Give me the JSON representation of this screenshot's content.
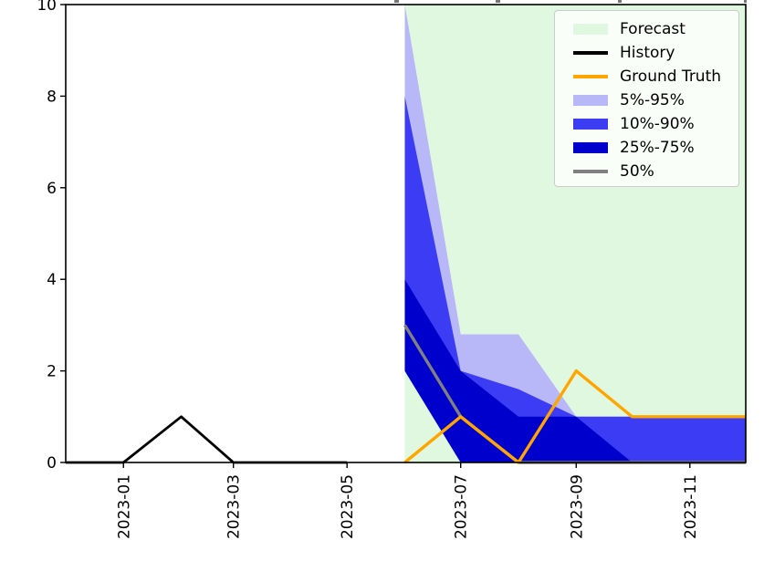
{
  "chart_data": {
    "type": "area",
    "title": "",
    "grid": false,
    "legend_position": "upper right",
    "xlim": [
      "2022-12-01",
      "2023-12-01"
    ],
    "ylim": [
      0,
      10
    ],
    "y_ticks": [
      0,
      2,
      4,
      6,
      8,
      10
    ],
    "x_tick_labels": [
      "2023-01",
      "2023-03",
      "2023-05",
      "2023-07",
      "2023-09",
      "2023-11"
    ],
    "history": {
      "x": [
        "2022-12",
        "2023-01",
        "2023-02",
        "2023-03",
        "2023-04",
        "2023-05"
      ],
      "y": [
        0,
        0,
        1,
        0,
        0,
        0
      ]
    },
    "ground_truth": {
      "x": [
        "2023-06",
        "2023-07",
        "2023-08",
        "2023-09",
        "2023-10",
        "2023-11",
        "2023-12"
      ],
      "y": [
        0,
        1,
        0,
        2,
        1,
        1,
        1
      ]
    },
    "forecast": {
      "region_start": "2023-06",
      "region_end": "2023-12",
      "x": [
        "2023-06",
        "2023-07",
        "2023-08",
        "2023-09",
        "2023-10",
        "2023-11",
        "2023-12"
      ],
      "q05": [
        2,
        0,
        0,
        0,
        0,
        0,
        0
      ],
      "q10": [
        2,
        0,
        0,
        0,
        0,
        0,
        0
      ],
      "q25": [
        2,
        0,
        0,
        0,
        0,
        0,
        0
      ],
      "q50": [
        3,
        1,
        0,
        0,
        0,
        0,
        0
      ],
      "q75": [
        4,
        2,
        1,
        1,
        0,
        0,
        0
      ],
      "q90": [
        8,
        2,
        1.6,
        1,
        1,
        1,
        1
      ],
      "q95": [
        10,
        2.8,
        2.8,
        1,
        1,
        1,
        1
      ]
    }
  },
  "legend": {
    "items": [
      {
        "label": "Forecast",
        "type": "patch",
        "color": "#dff8df"
      },
      {
        "label": "History",
        "type": "line",
        "color": "#000000"
      },
      {
        "label": "Ground Truth",
        "type": "line",
        "color": "#ffa500"
      },
      {
        "label": "5%-95%",
        "type": "patch",
        "color": "#b8b8f8"
      },
      {
        "label": "10%-90%",
        "type": "patch",
        "color": "#3c3cf5"
      },
      {
        "label": "25%-75%",
        "type": "patch",
        "color": "#0000cd"
      },
      {
        "label": "50%",
        "type": "line",
        "color": "#808080"
      }
    ]
  },
  "colors": {
    "forecast_region": "#dff8df",
    "band_5_95": "#b8b8f8",
    "band_10_90": "#3c3cf5",
    "band_25_75": "#0000cd",
    "median": "#808080",
    "history": "#000000",
    "ground_truth": "#ffa500",
    "axis": "#000000"
  }
}
